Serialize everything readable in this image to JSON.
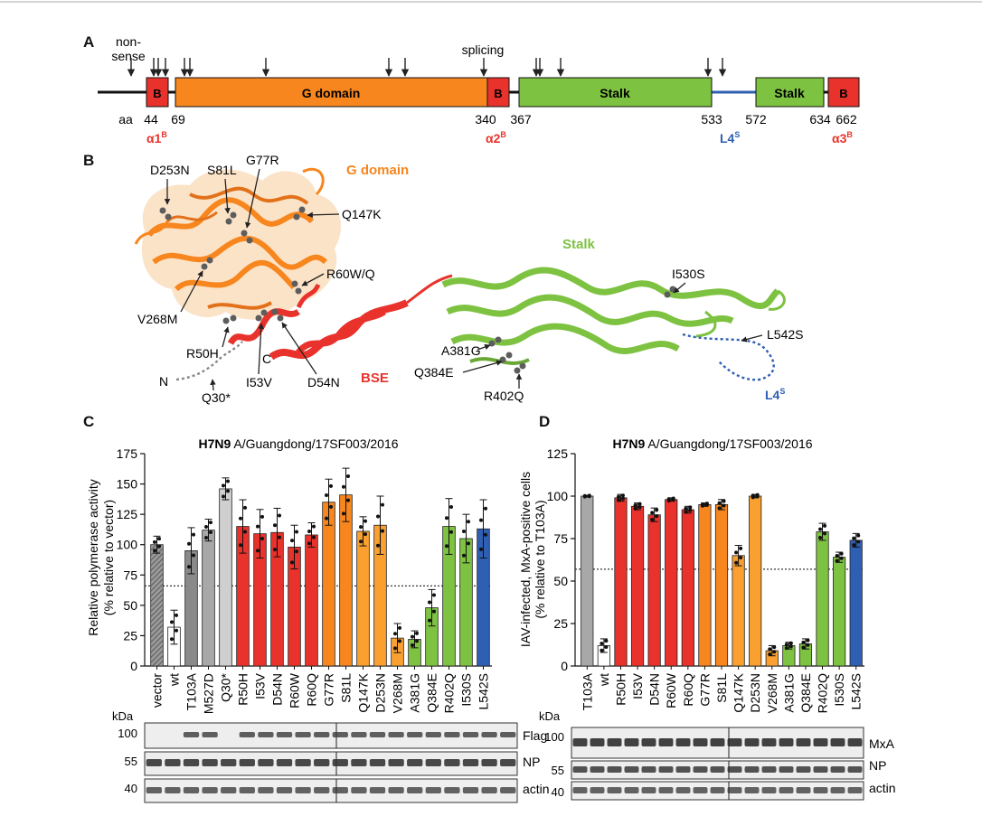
{
  "panels": {
    "a": "A",
    "b": "B",
    "c": "C",
    "d": "D"
  },
  "colors": {
    "b_red": "#e8322b",
    "g_orange": "#f7861e",
    "g_light_orange": "#f9a031",
    "stalk_green": "#7dc241",
    "l4_blue": "#2f5fb3",
    "gray_dark": "#8a8a8a",
    "gray_mid": "#a8a8a8",
    "gray_light": "#cfcfcf"
  },
  "panel_a": {
    "labels": {
      "nonsense": [
        "non-",
        "sense"
      ],
      "splicing": "splicing",
      "aa": "aa"
    },
    "domains": [
      "B",
      "G domain",
      "B",
      "Stalk",
      "Stalk",
      "B"
    ],
    "positions": [
      "44",
      "69",
      "340",
      "367",
      "533",
      "572",
      "634",
      "662"
    ],
    "alphas": [
      {
        "base": "α1",
        "sup": "B"
      },
      {
        "base": "α2",
        "sup": "B"
      },
      {
        "base": "L4",
        "sup": "S"
      },
      {
        "base": "α3",
        "sup": "B"
      }
    ]
  },
  "panel_b": {
    "labels": {
      "gdomain": "G domain",
      "stalk": "Stalk",
      "bse": "BSE",
      "l4": {
        "base": "L4",
        "sup": "S"
      },
      "n": "N",
      "c": "C"
    },
    "mutations": [
      "D253N",
      "S81L",
      "G77R",
      "Q147K",
      "R60W/Q",
      "V268M",
      "R50H",
      "I53V",
      "D54N",
      "Q30*",
      "I530S",
      "L542S",
      "A381G",
      "Q384E",
      "R402Q"
    ]
  },
  "panel_c": {
    "title_bold": "H7N9",
    "title_rest": " A/Guangdong/17SF003/2016",
    "ylabel": [
      "Relative polymerase activity",
      "(% relative to vector)"
    ],
    "blot_kda": "kDa",
    "blot_rows": [
      {
        "mw": "100",
        "label": "Flag"
      },
      {
        "mw": "55",
        "label": "NP"
      },
      {
        "mw": "40",
        "label": "actin"
      }
    ]
  },
  "panel_d": {
    "title_bold": "H7N9",
    "title_rest": " A/Guangdong/17SF003/2016",
    "ylabel": [
      "IAV-infected, MxA-positive cells",
      "(% relative to T103A)"
    ],
    "blot_kda": "kDa",
    "blot_rows": [
      {
        "mw": "100",
        "label": "MxA"
      },
      {
        "mw": "55",
        "label": "NP"
      },
      {
        "mw": "40",
        "label": "actin"
      }
    ]
  },
  "chart_data": [
    {
      "type": "bar",
      "title": "H7N9 A/Guangdong/17SF003/2016",
      "ylabel": "Relative polymerase activity (% relative to vector)",
      "ylim": [
        0,
        175
      ],
      "yticks": [
        0,
        25,
        50,
        75,
        100,
        125,
        150,
        175
      ],
      "threshold": 66,
      "categories": [
        "vector",
        "wt",
        "T103A",
        "M527D",
        "Q30*",
        "R50H",
        "I53V",
        "D54N",
        "R60W",
        "R60Q",
        "G77R",
        "S81L",
        "Q147K",
        "D253N",
        "V268M",
        "A381G",
        "Q384E",
        "R402Q",
        "I530S",
        "L542S"
      ],
      "values": [
        100,
        32,
        95,
        112,
        146,
        115,
        109,
        110,
        98,
        108,
        135,
        141,
        111,
        116,
        23,
        22,
        48,
        115,
        105,
        113
      ],
      "errors": [
        7,
        14,
        19,
        9,
        9,
        22,
        20,
        20,
        18,
        10,
        19,
        22,
        12,
        24,
        12,
        7,
        15,
        23,
        20,
        24
      ],
      "fills": [
        "hatch",
        "#ffffff",
        "#8a8a8a",
        "#a8a8a8",
        "#cfcfcf",
        "#e8322b",
        "#e8322b",
        "#e8322b",
        "#e8322b",
        "#e8322b",
        "#f7861e",
        "#f7861e",
        "#f9a031",
        "#f9a031",
        "#f9a031",
        "#7dc241",
        "#7dc241",
        "#7dc241",
        "#7dc241",
        "#2f5fb3"
      ]
    },
    {
      "type": "bar",
      "title": "H7N9 A/Guangdong/17SF003/2016",
      "ylabel": "IAV-infected, MxA-positive cells (% relative to T103A)",
      "ylim": [
        0,
        125
      ],
      "yticks": [
        0,
        25,
        50,
        75,
        100,
        125
      ],
      "threshold": 57,
      "categories": [
        "T103A",
        "wt",
        "R50H",
        "I53V",
        "D54N",
        "R60W",
        "R60Q",
        "G77R",
        "S81L",
        "Q147K",
        "D253N",
        "V268M",
        "A381G",
        "Q384E",
        "R402Q",
        "I530S",
        "L542S"
      ],
      "values": [
        100,
        12,
        99,
        94,
        89,
        98,
        92,
        95,
        95,
        65,
        100,
        9,
        12,
        13,
        79,
        64,
        74
      ],
      "errors": [
        0.5,
        4,
        2,
        2,
        4,
        1,
        2,
        1,
        3,
        6,
        1,
        3,
        2,
        3,
        5,
        3,
        4
      ],
      "fills": [
        "#a8a8a8",
        "#ffffff",
        "#e8322b",
        "#e8322b",
        "#e8322b",
        "#e8322b",
        "#e8322b",
        "#f7861e",
        "#f7861e",
        "#f9a031",
        "#f9a031",
        "#f9a031",
        "#7dc241",
        "#7dc241",
        "#7dc241",
        "#7dc241",
        "#2f5fb3"
      ]
    }
  ]
}
